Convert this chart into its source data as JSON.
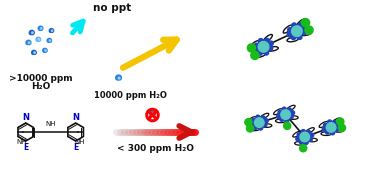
{
  "bg_color": "#ffffff",
  "top_label_noppt": "no ppt",
  "top_label_water1": ">10000 ppm\nH₂O",
  "top_label_water2": "10000 ppm H₂O",
  "bottom_label_water3": "< 300 ppm H₂O",
  "arrow_cyan_color": "#00e8f0",
  "arrow_yellow_color": "#f5c400",
  "arrow_red_color": "#cc1111",
  "water_drop_dark": "#1060c8",
  "water_drop_mid": "#2080e0",
  "water_drop_light": "#60b0ff",
  "cobalt_color": "#58c8c0",
  "nitrogen_color": "#2244bb",
  "chlorine_color": "#18bb18",
  "ligand_color": "#111111",
  "text_color_blue": "#0000cc",
  "text_color_black": "#111111",
  "fig_width": 3.78,
  "fig_height": 1.87,
  "dpi": 100
}
